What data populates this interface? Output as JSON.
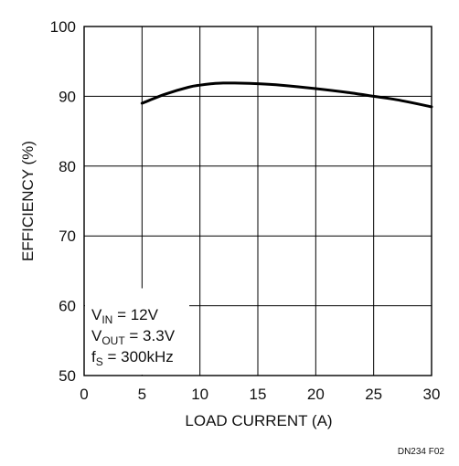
{
  "chart_data": {
    "type": "line",
    "xlabel": "LOAD CURRENT (A)",
    "ylabel": "EFFICIENCY (%)",
    "xlim": [
      0,
      30
    ],
    "ylim": [
      50,
      100
    ],
    "x_ticks": [
      "0",
      "5",
      "10",
      "15",
      "20",
      "25",
      "30"
    ],
    "y_ticks": [
      "100",
      "90",
      "80",
      "70",
      "60",
      "50"
    ],
    "grid": true,
    "series": [
      {
        "x": [
          5,
          7,
          9,
          10,
          11,
          12,
          13,
          15,
          17,
          20,
          23,
          25,
          27,
          30
        ],
        "y": [
          89.0,
          90.3,
          91.3,
          91.6,
          91.8,
          91.9,
          91.9,
          91.8,
          91.6,
          91.1,
          90.5,
          90.0,
          89.5,
          88.5
        ]
      }
    ],
    "annotation": {
      "line1": {
        "main": "V",
        "sub": "IN",
        "rest": " = 12V"
      },
      "line2": {
        "main": "V",
        "sub": "OUT",
        "rest": " = 3.3V"
      },
      "line3": {
        "main": "f",
        "sub": "S",
        "rest": " = 300kHz"
      }
    }
  },
  "figure_id": "DN234 F02"
}
